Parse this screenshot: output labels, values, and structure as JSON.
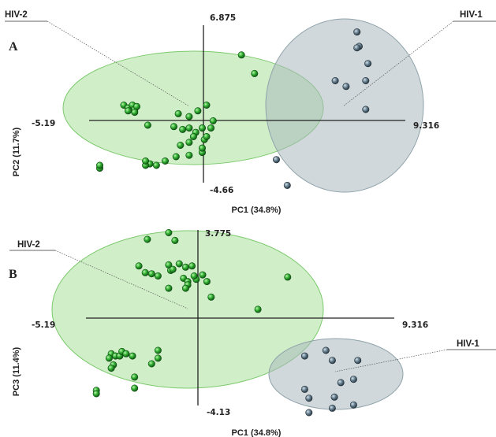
{
  "chart_data": [
    {
      "type": "scatter",
      "panel": "A",
      "xlabel": "PC1 (34.8%)",
      "ylabel": "PC2 (11.7%)",
      "xlim": [
        -5.19,
        9.316
      ],
      "ylim": [
        -4.66,
        6.875
      ],
      "axis_labels": {
        "xmin": "-5.19",
        "xmax": "9.316",
        "ymin": "-4.66",
        "ymax": "6.875"
      },
      "series": [
        {
          "name": "HIV-2",
          "color": "#2fa32f",
          "points": [
            [
              1.8,
              4.8
            ],
            [
              2.4,
              3.5
            ],
            [
              0.2,
              1.3
            ],
            [
              -0.2,
              0.9
            ],
            [
              -1.1,
              0.7
            ],
            [
              -0.6,
              0.5
            ],
            [
              -1.3,
              -0.2
            ],
            [
              -0.6,
              -0.3
            ],
            [
              -0.9,
              -0.4
            ],
            [
              -0.3,
              -0.6
            ],
            [
              -0.4,
              -0.9
            ],
            [
              -0.6,
              -1.3
            ],
            [
              -1.0,
              -1.5
            ],
            [
              0.1,
              -1.1
            ],
            [
              0.2,
              -0.9
            ],
            [
              0.0,
              -0.3
            ],
            [
              0.4,
              -0.3
            ],
            [
              0.5,
              0.2
            ],
            [
              -2.5,
              -0.1
            ],
            [
              -3.6,
              1.3
            ],
            [
              -3.4,
              1.1
            ],
            [
              -3.2,
              1.3
            ],
            [
              -3.1,
              1.0
            ],
            [
              -3.0,
              1.2
            ],
            [
              -3.4,
              0.9
            ],
            [
              -3.1,
              0.8
            ],
            [
              -2.4,
              -2.8
            ],
            [
              -2.1,
              -2.9
            ],
            [
              -2.6,
              -2.9
            ],
            [
              -2.6,
              -2.6
            ],
            [
              -1.7,
              -2.6
            ],
            [
              -1.2,
              -2.3
            ],
            [
              -4.7,
              -3.1
            ],
            [
              -4.7,
              -2.9
            ],
            [
              -0.6,
              -2.2
            ],
            [
              0.0,
              -2.0
            ],
            [
              0.0,
              -1.7
            ]
          ]
        },
        {
          "name": "HIV-1",
          "color": "#5f7380",
          "points": [
            [
              7.1,
              6.4
            ],
            [
              7.2,
              5.4
            ],
            [
              7.1,
              5.3
            ],
            [
              7.6,
              4.2
            ],
            [
              7.5,
              3.0
            ],
            [
              6.1,
              3.0
            ],
            [
              6.6,
              2.6
            ],
            [
              7.5,
              1.0
            ],
            [
              3.4,
              -2.5
            ],
            [
              3.9,
              -4.3
            ]
          ]
        }
      ]
    },
    {
      "type": "scatter",
      "panel": "B",
      "xlabel": "PC1 (34.8%)",
      "ylabel": "PC3 (11.4%)",
      "xlim": [
        -5.19,
        9.316
      ],
      "ylim": [
        -4.13,
        3.775
      ],
      "axis_labels": {
        "xmin": "-5.19",
        "xmax": "9.316",
        "ymin": "-4.13",
        "ymax": "3.775"
      },
      "series": [
        {
          "name": "HIV-2",
          "color": "#2fa32f",
          "points": [
            [
              -1.3,
              3.65
            ],
            [
              -2.3,
              3.35
            ],
            [
              -1.0,
              3.3
            ],
            [
              -1.3,
              2.2
            ],
            [
              -2.7,
              2.15
            ],
            [
              -2.4,
              1.85
            ],
            [
              -2.1,
              1.8
            ],
            [
              -1.8,
              1.7
            ],
            [
              -1.2,
              1.95
            ],
            [
              -1.1,
              2.0
            ],
            [
              -0.6,
              1.6
            ],
            [
              -0.4,
              1.45
            ],
            [
              0.0,
              1.55
            ],
            [
              -0.2,
              2.15
            ],
            [
              -0.8,
              2.25
            ],
            [
              -0.5,
              2.1
            ],
            [
              0.3,
              1.75
            ],
            [
              0.5,
              1.45
            ],
            [
              -0.1,
              1.7
            ],
            [
              -0.4,
              1.3
            ],
            [
              -1.3,
              1.15
            ],
            [
              -0.5,
              1.15
            ],
            [
              0.7,
              0.75
            ],
            [
              4.3,
              1.65
            ],
            [
              2.9,
              0.2
            ],
            [
              -4.0,
              -1.8
            ],
            [
              -4.1,
              -2.0
            ],
            [
              -3.8,
              -1.9
            ],
            [
              -3.6,
              -1.9
            ],
            [
              -3.5,
              -1.7
            ],
            [
              -3.3,
              -1.8
            ],
            [
              -3.0,
              -1.9
            ],
            [
              -3.9,
              -2.3
            ],
            [
              -4.0,
              -2.45
            ],
            [
              -1.8,
              -1.65
            ],
            [
              -1.8,
              -2.0
            ],
            [
              -2.1,
              -2.25
            ],
            [
              -4.7,
              -3.45
            ],
            [
              -4.7,
              -3.6
            ],
            [
              -2.9,
              -2.85
            ],
            [
              -2.9,
              -3.35
            ]
          ]
        },
        {
          "name": "HIV-1",
          "color": "#5f7380",
          "points": [
            [
              6.1,
              -1.65
            ],
            [
              5.1,
              -1.9
            ],
            [
              6.4,
              -2.1
            ],
            [
              7.6,
              -2.1
            ],
            [
              7.4,
              -2.95
            ],
            [
              6.8,
              -3.1
            ],
            [
              5.1,
              -3.4
            ],
            [
              5.3,
              -3.8
            ],
            [
              6.5,
              -3.75
            ],
            [
              7.4,
              -4.1
            ],
            [
              6.4,
              -4.25
            ],
            [
              5.3,
              -4.45
            ]
          ]
        }
      ]
    }
  ]
}
